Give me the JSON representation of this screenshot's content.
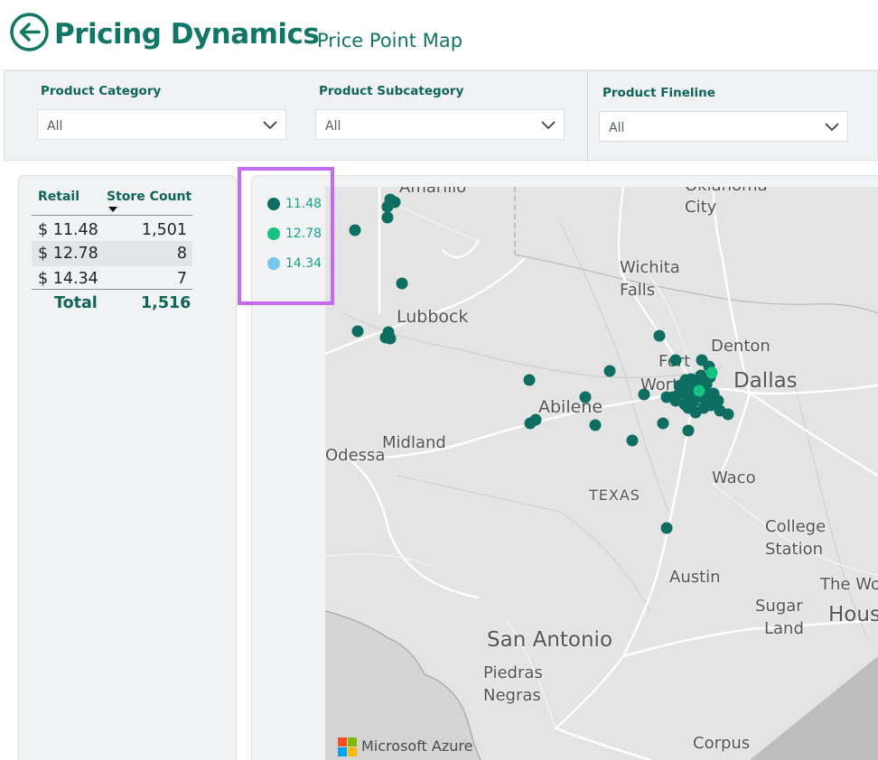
{
  "header": {
    "title": "Pricing Dynamics",
    "subtitle": "Price Point Map"
  },
  "filters": [
    {
      "label": "Product Category",
      "value": "All"
    },
    {
      "label": "Product Subcategory",
      "value": "All"
    },
    {
      "label": "Product Fineline",
      "value": "All"
    }
  ],
  "table": {
    "columns": [
      "Retail",
      "Store Count"
    ],
    "rows": [
      {
        "retail": "$ 11.48",
        "count": "1,501"
      },
      {
        "retail": "$ 12.78",
        "count": "8"
      },
      {
        "retail": "$ 14.34",
        "count": "7"
      }
    ],
    "total_label": "Total",
    "total_value": "1,516"
  },
  "legend": [
    {
      "label": "11.48",
      "color": "#0e6e62"
    },
    {
      "label": "12.78",
      "color": "#15c27e"
    },
    {
      "label": "14.34",
      "color": "#79c6ea"
    }
  ],
  "map": {
    "cities": [
      "Amarillo",
      "Oklahoma",
      "City",
      "Wichita",
      "Falls",
      "Lubbock",
      "Denton",
      "Fort",
      "Worth",
      "Dallas",
      "Abilene",
      "Midland",
      "Odessa",
      "Waco",
      "TEXAS",
      "College",
      "Station",
      "Austin",
      "The Wo",
      "Sugar",
      "Land",
      "Hous",
      "San Antonio",
      "Piedras",
      "Negras",
      "Corpus"
    ],
    "attribution": "Microsoft Azure"
  },
  "colors": {
    "brand": "#107665",
    "legend_highlight": "#c56af2"
  }
}
